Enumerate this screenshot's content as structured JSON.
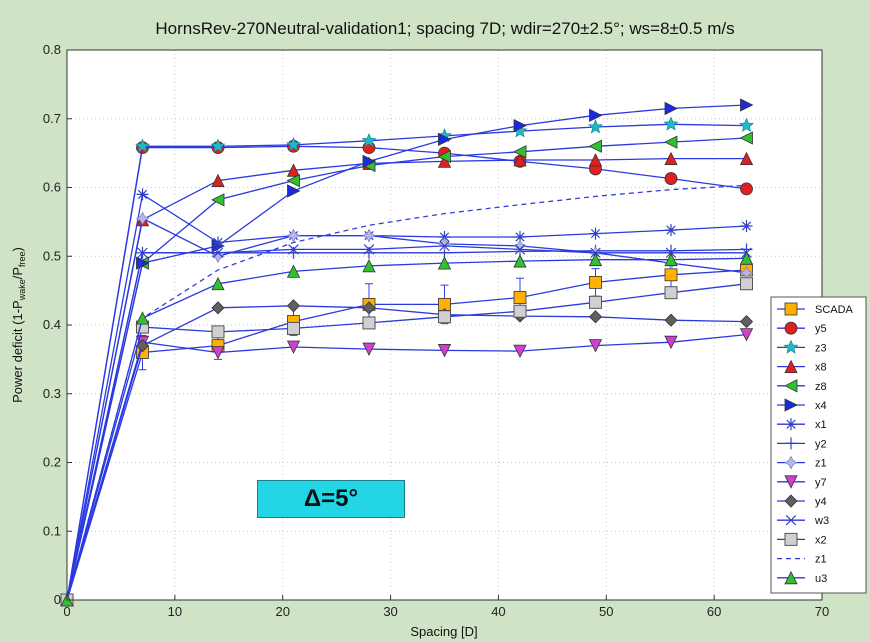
{
  "chart_data": {
    "type": "line",
    "title": "HornsRev-270Neutral-validation1; spacing 7D; wdir=270±2.5°; ws=8±0.5 m/s",
    "xlabel": "Spacing [D]",
    "ylabel_main": "Power deficit (1-P",
    "ylabel_sub1": "wake",
    "ylabel_mid": "/P",
    "ylabel_sub2": "free",
    "ylabel_end": ")",
    "xlim": [
      0,
      70
    ],
    "ylim": [
      0,
      0.8
    ],
    "xticks": [
      0,
      10,
      20,
      30,
      40,
      50,
      60,
      70
    ],
    "yticks": [
      0,
      0.1,
      0.2,
      0.3,
      0.4,
      0.5,
      0.6,
      0.7,
      0.8
    ],
    "ytick_labels": [
      "0",
      "0.1",
      "0.2",
      "0.3",
      "0.4",
      "0.5",
      "0.6",
      "0.7",
      "0.8"
    ],
    "grid": true,
    "legend_position": "right",
    "annotation": "Δ=5°",
    "x": [
      0,
      7,
      14,
      21,
      28,
      35,
      42,
      49,
      56,
      63
    ],
    "series": [
      {
        "name": "SCADA",
        "marker": "square",
        "color": "#ffb000",
        "values": [
          0,
          0.36,
          0.37,
          0.405,
          0.43,
          0.43,
          0.44,
          0.462,
          0.473,
          0.48
        ],
        "errors": [
          0,
          0.025,
          0.02,
          0.02,
          0.03,
          0.028,
          0.028,
          0.02,
          0.02,
          0.02
        ]
      },
      {
        "name": "y5",
        "marker": "circle",
        "color": "#e02020",
        "values": [
          0,
          0.658,
          0.658,
          0.66,
          0.658,
          0.65,
          0.638,
          0.627,
          0.613,
          0.598
        ]
      },
      {
        "name": "z3",
        "marker": "star",
        "color": "#20b8c8",
        "values": [
          0,
          0.66,
          0.66,
          0.662,
          0.668,
          0.675,
          0.682,
          0.688,
          0.692,
          0.69
        ]
      },
      {
        "name": "x8",
        "marker": "triangle-up",
        "color": "#e02020",
        "values": [
          0,
          0.553,
          0.61,
          0.625,
          0.635,
          0.638,
          0.64,
          0.64,
          0.642,
          0.642
        ]
      },
      {
        "name": "z8",
        "marker": "triangle-left",
        "color": "#30c030",
        "values": [
          0,
          0.49,
          0.582,
          0.61,
          0.632,
          0.645,
          0.652,
          0.66,
          0.666,
          0.672
        ]
      },
      {
        "name": "x4",
        "marker": "triangle-right",
        "color": "#1a2ae0",
        "values": [
          0,
          0.49,
          0.515,
          0.595,
          0.638,
          0.67,
          0.69,
          0.705,
          0.715,
          0.72
        ]
      },
      {
        "name": "x1",
        "marker": "asterisk",
        "color": "#3040c0",
        "values": [
          0,
          0.59,
          0.52,
          0.53,
          0.53,
          0.528,
          0.528,
          0.533,
          0.538,
          0.544
        ]
      },
      {
        "name": "y2",
        "marker": "plus",
        "color": "#3040c0",
        "values": [
          0,
          0.505,
          0.505,
          0.505,
          0.505,
          0.505,
          0.507,
          0.508,
          0.508,
          0.51
        ]
      },
      {
        "name": "z1",
        "marker": "diamond-star",
        "color": "#8080d0",
        "values": [
          0,
          0.555,
          0.5,
          0.53,
          0.53,
          0.518,
          0.515,
          0.505,
          0.49,
          0.476
        ]
      },
      {
        "name": "y7",
        "marker": "triangle-down",
        "color": "#d040d0",
        "values": [
          0,
          0.375,
          0.36,
          0.368,
          0.365,
          0.363,
          0.362,
          0.37,
          0.375,
          0.386
        ]
      },
      {
        "name": "y4",
        "marker": "diamond",
        "color": "#606060",
        "values": [
          0,
          0.37,
          0.425,
          0.428,
          0.425,
          0.415,
          0.413,
          0.412,
          0.407,
          0.405
        ]
      },
      {
        "name": "w3",
        "marker": "cross",
        "color": "#3040c0",
        "values": [
          0,
          0.505,
          0.505,
          0.51,
          0.51,
          0.515,
          0.51,
          0.505,
          0.505,
          0.505
        ]
      },
      {
        "name": "x2",
        "marker": "square-hollow",
        "color": "#a0a0a0",
        "values": [
          0,
          0.397,
          0.39,
          0.395,
          0.403,
          0.412,
          0.42,
          0.433,
          0.447,
          0.46
        ]
      },
      {
        "name": "z1",
        "marker": "dashed",
        "color": "#3040e0",
        "values": [
          0,
          0.41,
          0.48,
          0.52,
          0.545,
          0.562,
          0.575,
          0.587,
          0.597,
          0.603
        ]
      },
      {
        "name": "u3",
        "marker": "triangle-up",
        "color": "#30c030",
        "values": [
          0,
          0.41,
          0.46,
          0.478,
          0.486,
          0.49,
          0.493,
          0.495,
          0.495,
          0.497
        ]
      }
    ]
  }
}
